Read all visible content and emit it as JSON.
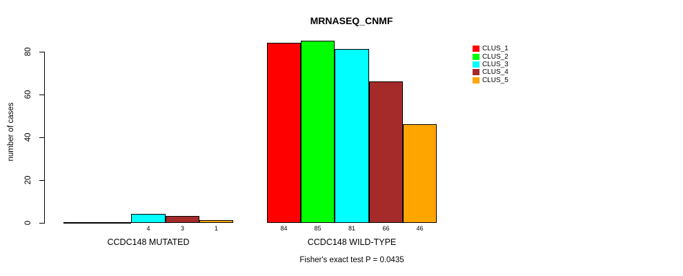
{
  "background_color": "#ffffff",
  "text_color": "#000000",
  "chart_data": {
    "type": "bar",
    "title": "MRNASEQ_CNMF",
    "ylabel": "number of cases",
    "xlabel": "",
    "categories": [
      "CCDC148 MUTATED",
      "CCDC148 WILD-TYPE"
    ],
    "series": [
      {
        "name": "CLUS_1",
        "color": "#ff0000",
        "values": [
          0,
          84
        ]
      },
      {
        "name": "CLUS_2",
        "color": "#00ff00",
        "values": [
          0,
          85
        ]
      },
      {
        "name": "CLUS_3",
        "color": "#00ffff",
        "values": [
          4,
          81
        ]
      },
      {
        "name": "CLUS_4",
        "color": "#a52a2a",
        "values": [
          3,
          66
        ]
      },
      {
        "name": "CLUS_5",
        "color": "#ffa500",
        "values": [
          1,
          46
        ]
      }
    ],
    "y_ticks": [
      0,
      20,
      40,
      60,
      80
    ],
    "ylim": [
      0,
      85
    ],
    "grid": false,
    "legend_position": "top-right",
    "bar_value_labels_shown": true,
    "zero_bars_unlabeled": true,
    "annotation": "Fisher's exact test P = 0.0435"
  }
}
